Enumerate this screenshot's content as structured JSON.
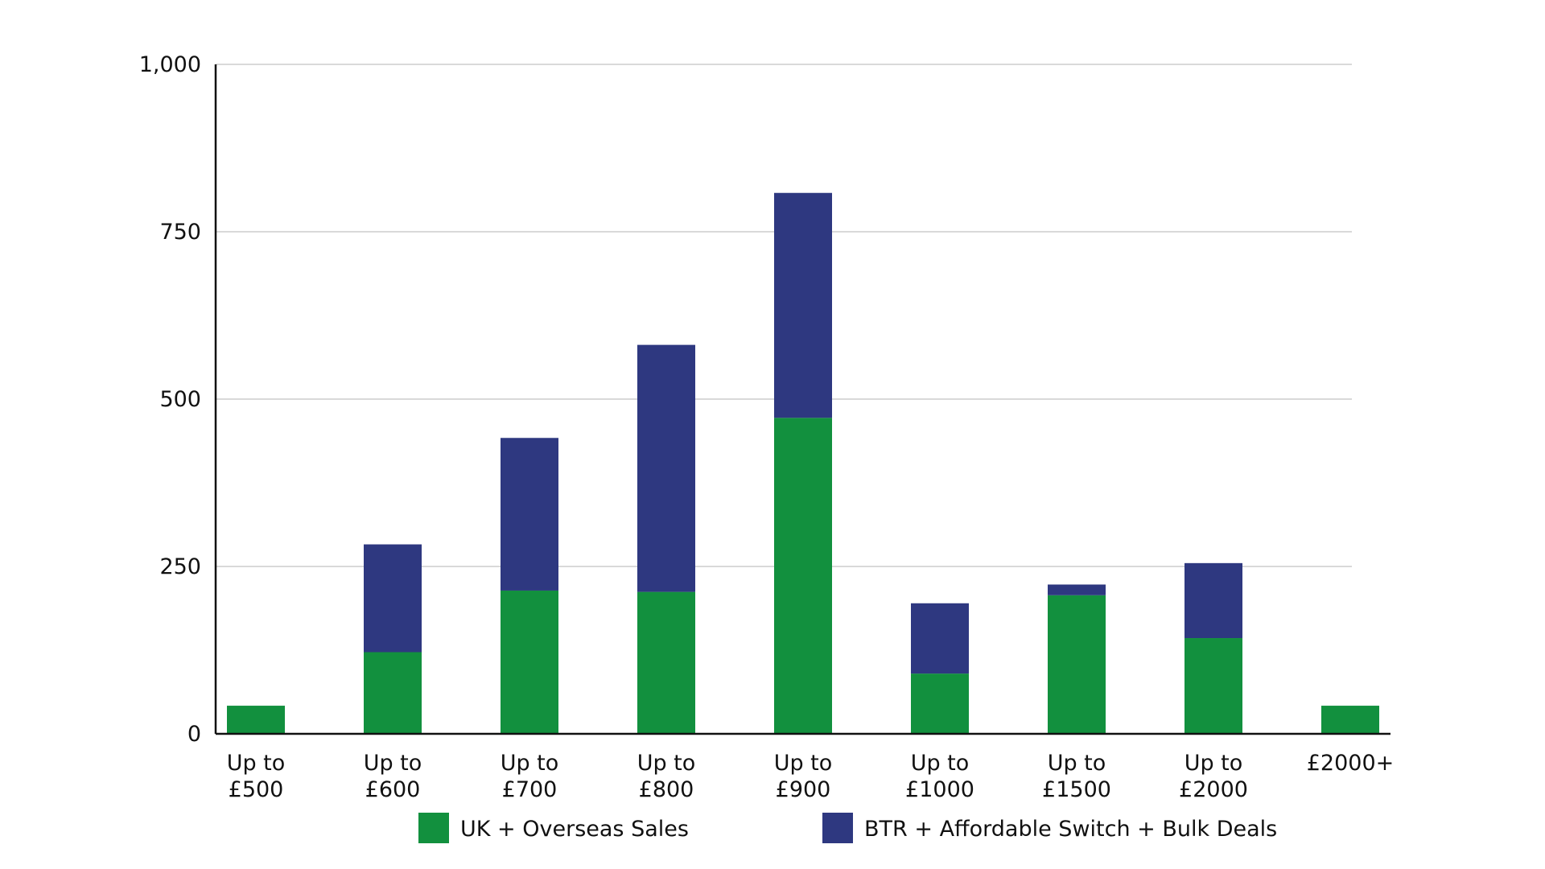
{
  "chart_data": {
    "type": "bar",
    "stacked": true,
    "categories": [
      [
        "Up to",
        "£500"
      ],
      [
        "Up to",
        "£600"
      ],
      [
        "Up to",
        "£700"
      ],
      [
        "Up to",
        "£800"
      ],
      [
        "Up to",
        "£900"
      ],
      [
        "Up to",
        "£1000"
      ],
      [
        "Up to",
        "£1500"
      ],
      [
        "Up to",
        "£2000"
      ],
      [
        "£2000+"
      ]
    ],
    "series": [
      {
        "name": "UK + Overseas Sales",
        "color": "#12903e",
        "values": [
          42,
          122,
          214,
          212,
          472,
          90,
          207,
          143,
          42
        ]
      },
      {
        "name": "BTR + Affordable Switch + Bulk Deals",
        "color": "#2e3880",
        "values": [
          0,
          161,
          228,
          369,
          336,
          105,
          16,
          112,
          0
        ]
      }
    ],
    "title": "",
    "xlabel": "",
    "ylabel": "",
    "ylim": [
      0,
      1000
    ],
    "yticks": [
      {
        "value": 0,
        "label": "0"
      },
      {
        "value": 250,
        "label": "250"
      },
      {
        "value": 500,
        "label": "500"
      },
      {
        "value": 750,
        "label": "750"
      },
      {
        "value": 1000,
        "label": "1,000"
      }
    ],
    "grid": true,
    "grid_color": "#d9d9d9",
    "legend_position": "bottom-center"
  }
}
